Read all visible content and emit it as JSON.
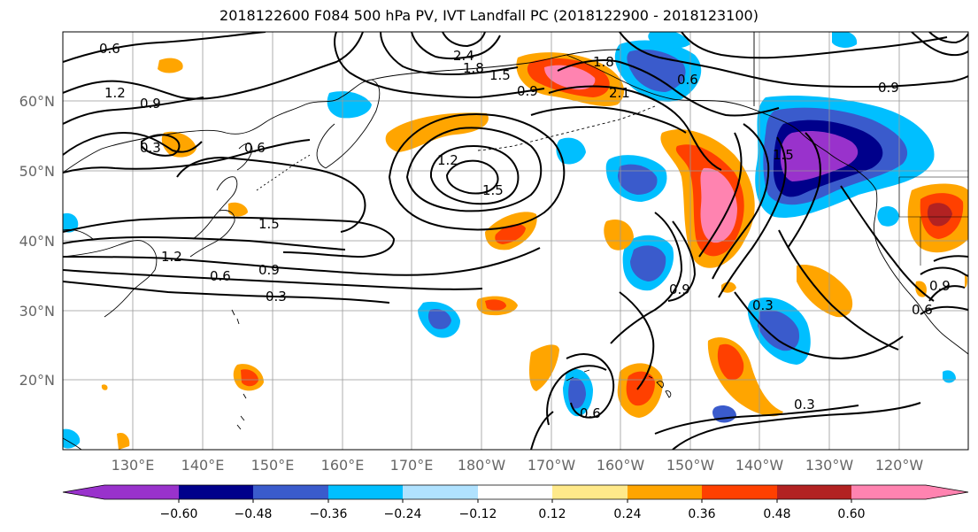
{
  "title": "2018122600 F084 500 hPa PV, IVT Landfall PC (2018122900 - 2018123100)",
  "map": {
    "lat_labels": [
      "60°N",
      "50°N",
      "40°N",
      "30°N",
      "20°N"
    ],
    "lon_labels": [
      "130°E",
      "140°E",
      "150°E",
      "160°E",
      "170°E",
      "180°W",
      "170°W",
      "160°W",
      "150°W",
      "140°W",
      "130°W",
      "120°W"
    ],
    "grid": true,
    "contour_labels": [
      "0.6",
      "1.2",
      "0.9",
      "0.3",
      "0.6",
      "1.5",
      "1.2",
      "0.9",
      "0.6",
      "0.3",
      "2.4",
      "1.8",
      "1.5",
      "0.9",
      "1.2",
      "1.5",
      "1.8",
      "2.1",
      "0.6",
      "0.9",
      "1.5",
      "0.9",
      "0.3",
      "0.6",
      "0.3",
      "0.6",
      "0.9"
    ]
  },
  "colorbar": {
    "ticks": [
      "−0.60",
      "−0.48",
      "−0.36",
      "−0.24",
      "−0.12",
      "0.12",
      "0.24",
      "0.36",
      "0.48",
      "0.60"
    ],
    "colors": [
      "#9932CC",
      "#00008B",
      "#3A5BCC",
      "#00BFFF",
      "#B0E2FF",
      "#FFFFFF",
      "#FFE98A",
      "#FFA500",
      "#FF4000",
      "#B22222",
      "#FF83B0"
    ]
  }
}
